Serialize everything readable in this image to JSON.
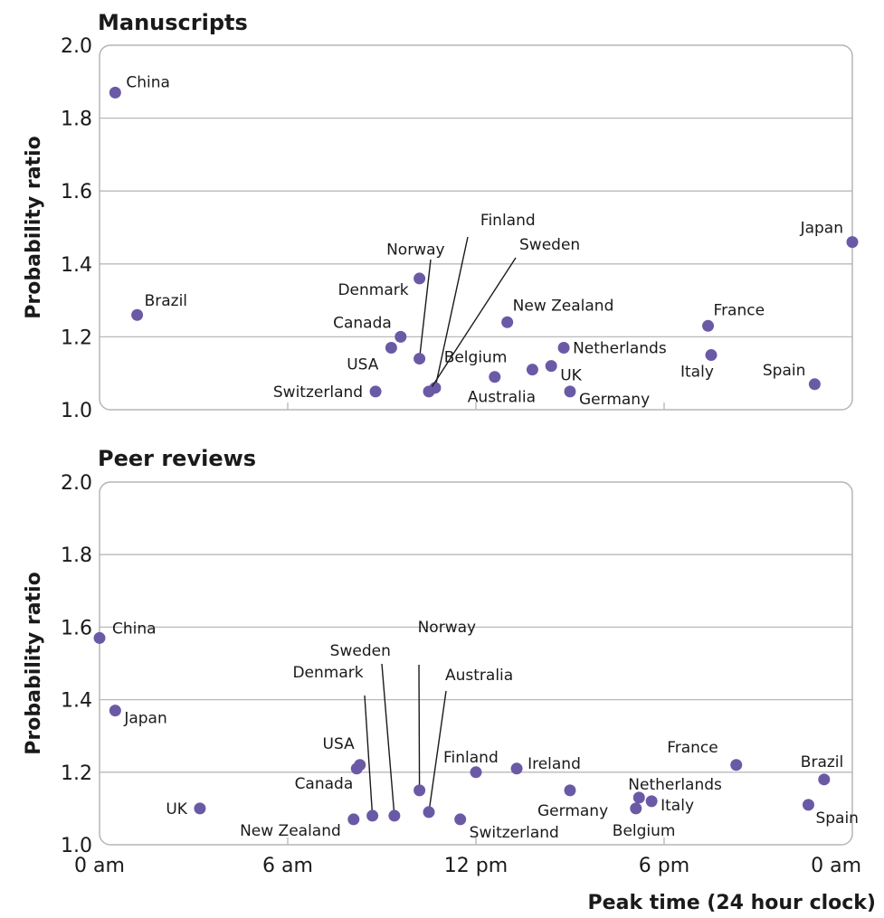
{
  "colors": {
    "point": "#6a5aa6",
    "grid": "#b9b9b9",
    "frame": "#b5b5b5"
  },
  "chart_data": [
    {
      "type": "scatter",
      "title": "Manuscripts",
      "ylabel": "Probability ratio",
      "xlabel": "",
      "ylim": [
        1.0,
        2.0
      ],
      "yticks": [
        "1.0",
        "1.2",
        "1.4",
        "1.6",
        "1.8",
        "2.0"
      ],
      "xlim": [
        0,
        24
      ],
      "xticks": [
        "0 am",
        "6 am",
        "12 pm",
        "6 pm",
        "0 am"
      ],
      "grid": true,
      "points": [
        {
          "label": "China",
          "x": 0.5,
          "y": 1.87
        },
        {
          "label": "Brazil",
          "x": 1.2,
          "y": 1.26
        },
        {
          "label": "Switzerland",
          "x": 8.8,
          "y": 1.05
        },
        {
          "label": "USA",
          "x": 9.3,
          "y": 1.17
        },
        {
          "label": "Canada",
          "x": 9.6,
          "y": 1.2
        },
        {
          "label": "Denmark",
          "x": 10.2,
          "y": 1.36
        },
        {
          "label": "Norway",
          "x": 10.2,
          "y": 1.14
        },
        {
          "label": "Finland",
          "x": 10.7,
          "y": 1.06
        },
        {
          "label": "Sweden",
          "x": 10.5,
          "y": 1.05
        },
        {
          "label": "Australia",
          "x": 12.6,
          "y": 1.09
        },
        {
          "label": "New Zealand",
          "x": 13.0,
          "y": 1.24
        },
        {
          "label": "Belgium",
          "x": 13.8,
          "y": 1.11
        },
        {
          "label": "UK",
          "x": 14.4,
          "y": 1.12
        },
        {
          "label": "Netherlands",
          "x": 14.8,
          "y": 1.17
        },
        {
          "label": "Germany",
          "x": 15.0,
          "y": 1.05
        },
        {
          "label": "France",
          "x": 19.4,
          "y": 1.23
        },
        {
          "label": "Italy",
          "x": 19.5,
          "y": 1.15
        },
        {
          "label": "Spain",
          "x": 22.8,
          "y": 1.07
        },
        {
          "label": "Japan",
          "x": 24.0,
          "y": 1.46
        }
      ]
    },
    {
      "type": "scatter",
      "title": "Peer reviews",
      "ylabel": "Probability ratio",
      "xlabel": "Peak time (24 hour clock)",
      "ylim": [
        1.0,
        2.0
      ],
      "yticks": [
        "1.0",
        "1.2",
        "1.4",
        "1.6",
        "1.8",
        "2.0"
      ],
      "xlim": [
        0,
        24
      ],
      "xticks": [
        "0 am",
        "6 am",
        "12 pm",
        "6 pm",
        "0 am"
      ],
      "grid": true,
      "points": [
        {
          "label": "China",
          "x": 0.0,
          "y": 1.57
        },
        {
          "label": "Japan",
          "x": 0.5,
          "y": 1.37
        },
        {
          "label": "UK",
          "x": 3.2,
          "y": 1.1
        },
        {
          "label": "New Zealand",
          "x": 8.1,
          "y": 1.07
        },
        {
          "label": "USA",
          "x": 8.3,
          "y": 1.22
        },
        {
          "label": "Canada",
          "x": 8.2,
          "y": 1.21
        },
        {
          "label": "Denmark",
          "x": 8.7,
          "y": 1.08
        },
        {
          "label": "Sweden",
          "x": 9.4,
          "y": 1.08
        },
        {
          "label": "Norway",
          "x": 10.2,
          "y": 1.15
        },
        {
          "label": "Australia",
          "x": 10.5,
          "y": 1.09
        },
        {
          "label": "Switzerland",
          "x": 11.5,
          "y": 1.07
        },
        {
          "label": "Finland",
          "x": 12.0,
          "y": 1.2
        },
        {
          "label": "Ireland",
          "x": 13.3,
          "y": 1.21
        },
        {
          "label": "Germany",
          "x": 15.0,
          "y": 1.15
        },
        {
          "label": "Belgium",
          "x": 17.1,
          "y": 1.1
        },
        {
          "label": "Netherlands",
          "x": 17.2,
          "y": 1.13
        },
        {
          "label": "Italy",
          "x": 17.6,
          "y": 1.12
        },
        {
          "label": "France",
          "x": 20.3,
          "y": 1.22
        },
        {
          "label": "Spain",
          "x": 22.6,
          "y": 1.11
        },
        {
          "label": "Brazil",
          "x": 23.1,
          "y": 1.18
        }
      ]
    }
  ]
}
